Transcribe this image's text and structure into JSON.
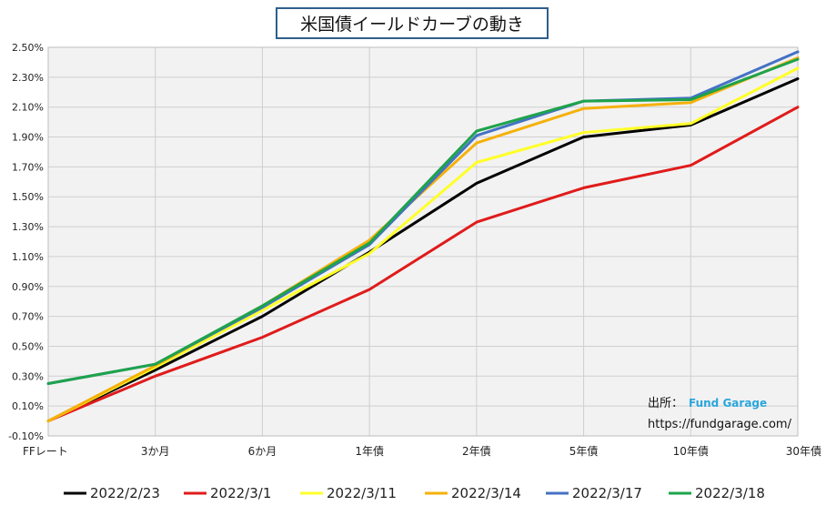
{
  "chart_data": {
    "type": "line",
    "title": "米国債イールドカーブの動き",
    "categories": [
      "FFレート",
      "3か月",
      "6か月",
      "1年債",
      "2年債",
      "5年債",
      "10年債",
      "30年債"
    ],
    "y_ticks": [
      "-0.10%",
      "0.10%",
      "0.30%",
      "0.50%",
      "0.70%",
      "0.90%",
      "1.10%",
      "1.30%",
      "1.50%",
      "1.70%",
      "1.90%",
      "2.10%",
      "2.30%",
      "2.50%"
    ],
    "ylim": [
      -0.1,
      2.5
    ],
    "grid": true,
    "legend_position": "bottom",
    "series": [
      {
        "name": "2022/2/23",
        "color": "#000000",
        "values": [
          0.0,
          0.34,
          0.7,
          1.13,
          1.59,
          1.9,
          1.98,
          2.29
        ]
      },
      {
        "name": "2022/3/1",
        "color": "#e01b1b",
        "values": [
          0.0,
          0.3,
          0.56,
          0.88,
          1.33,
          1.56,
          1.71,
          2.1
        ]
      },
      {
        "name": "2022/3/11",
        "color": "#ffff2a",
        "values": [
          0.0,
          0.36,
          0.74,
          1.12,
          1.73,
          1.93,
          1.99,
          2.36
        ]
      },
      {
        "name": "2022/3/14",
        "color": "#f5b10a",
        "values": [
          0.0,
          0.37,
          0.77,
          1.21,
          1.86,
          2.09,
          2.13,
          2.43
        ]
      },
      {
        "name": "2022/3/17",
        "color": "#4472c4",
        "values": [
          0.25,
          0.38,
          0.76,
          1.18,
          1.91,
          2.14,
          2.16,
          2.47
        ]
      },
      {
        "name": "2022/3/18",
        "color": "#1ea34b",
        "values": [
          0.25,
          0.38,
          0.77,
          1.19,
          1.94,
          2.14,
          2.15,
          2.42
        ]
      }
    ]
  },
  "source": {
    "label": "出所：",
    "brand": "Fund Garage",
    "url": "https://fundgarage.com/"
  }
}
